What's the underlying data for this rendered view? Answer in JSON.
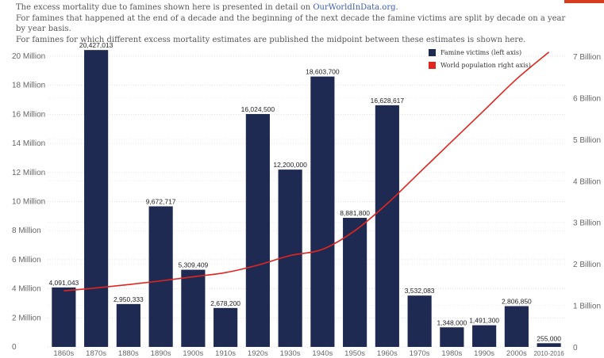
{
  "notes": {
    "line1_prefix": "The excess mortality due to famines shown here is presented in detail on ",
    "line1_link": "OurWorldInData.org",
    "line1_suffix": ".",
    "line2": "For famines that happened at the end of a decade and the beginning of the next decade the famine victims are split by decade on a year by year basis.",
    "line3": "For famines for which different excess mortality estimates are published the midpoint between these estimates is shown here."
  },
  "colors": {
    "bar": "#1f2a52",
    "line": "#e0261e",
    "accent": "#d43d1e"
  },
  "chart_data": {
    "type": "bar",
    "categories": [
      "1860s",
      "1870s",
      "1880s",
      "1890s",
      "1900s",
      "1910s",
      "1920s",
      "1930s",
      "1940s",
      "1950s",
      "1960s",
      "1970s",
      "1980s",
      "1990s",
      "2000s",
      "2010-2016"
    ],
    "series": [
      {
        "name": "Famine victims (left axis)",
        "type": "bar",
        "axis": "left",
        "values": [
          4091043,
          20427013,
          2950333,
          9672717,
          5309409,
          2678200,
          16024500,
          12200000,
          18603700,
          8881800,
          16628617,
          3532083,
          1348000,
          1491300,
          2806850,
          255000
        ],
        "labels": [
          "4,091,043",
          "20,427,013",
          "2,950,333",
          "9,672,717",
          "5,309,409",
          "2,678,200",
          "16,024,500",
          "12,200,000",
          "18,603,700",
          "8,881,800",
          "16,628,617",
          "3,532,083",
          "1,348,000",
          "1,491,300",
          "2,806,850",
          "255,000"
        ]
      },
      {
        "name": "World population right axis)",
        "type": "line",
        "axis": "right",
        "values": [
          1.35,
          1.42,
          1.5,
          1.59,
          1.69,
          1.79,
          1.97,
          2.2,
          2.35,
          2.8,
          3.45,
          4.2,
          4.95,
          5.7,
          6.45,
          7.1
        ]
      }
    ],
    "y_left": {
      "ylim": [
        0,
        20000000
      ],
      "ticks": [
        0,
        2000000,
        4000000,
        6000000,
        8000000,
        10000000,
        12000000,
        14000000,
        16000000,
        18000000,
        20000000
      ],
      "tick_labels": [
        "0",
        "2 Million",
        "4 Million",
        "6 Million",
        "8 Million",
        "10 Million",
        "12 Million",
        "14 Million",
        "16 Million",
        "18 Million",
        "20 Million"
      ]
    },
    "y_right": {
      "ylim": [
        0,
        7
      ],
      "ticks": [
        0,
        1,
        2,
        3,
        4,
        5,
        6,
        7
      ],
      "tick_labels": [
        "0",
        "1 Billion",
        "2 Billion",
        "3 Billion",
        "4 Billion",
        "5 Billion",
        "6 Billion",
        "7 Billion"
      ]
    },
    "grid": true,
    "legend_position": "top-right"
  }
}
